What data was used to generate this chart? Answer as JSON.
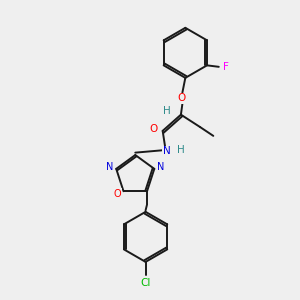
{
  "bg_color": "#efefef",
  "bond_color": "#1a1a1a",
  "atom_colors": {
    "O": "#ff0000",
    "N": "#0000dd",
    "F": "#ff00ff",
    "Cl": "#00bb00",
    "H": "#2e8b8b",
    "C": "#1a1a1a"
  },
  "lw": 1.4
}
